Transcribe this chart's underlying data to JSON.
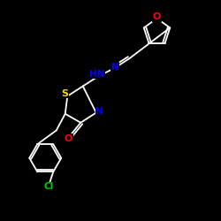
{
  "bg_color": "#000000",
  "bond_color": "#ffffff",
  "atom_colors": {
    "N": "#0000ff",
    "S": "#ffd700",
    "O": "#ff0000",
    "Cl": "#00cc00",
    "C": "#ffffff",
    "H": "#ffffff"
  },
  "font_size": 7.5,
  "line_width": 1.3,
  "title": ""
}
